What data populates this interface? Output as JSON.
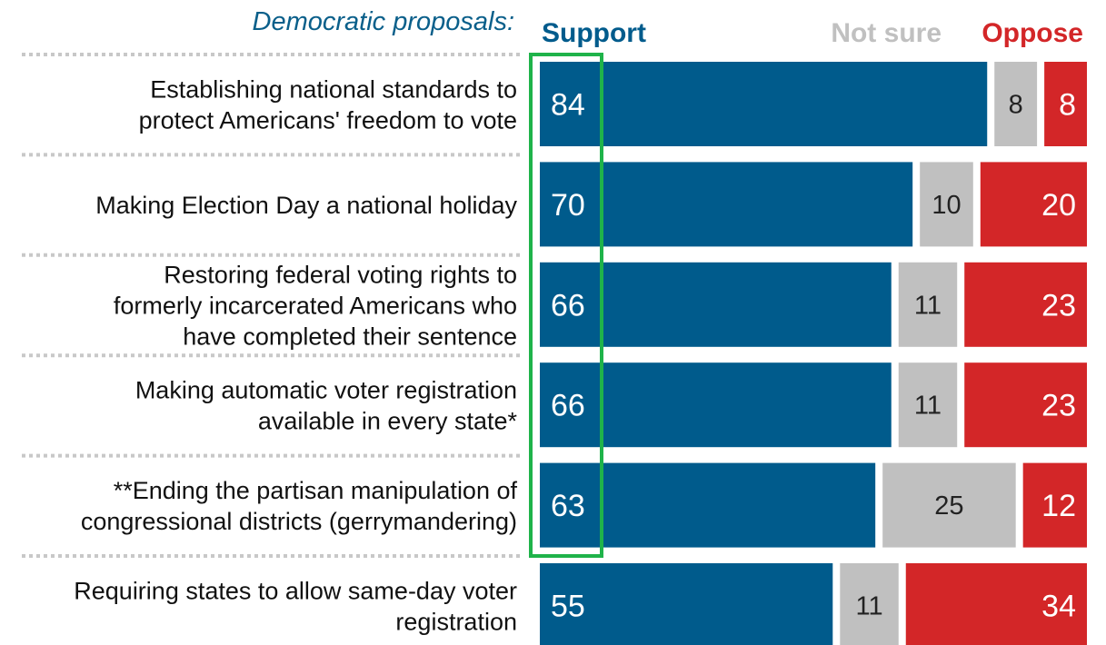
{
  "chart_data": {
    "type": "bar",
    "orientation": "horizontal",
    "stacked": true,
    "title": "Democratic proposals:",
    "categories": [
      "Establishing national standards to protect Americans' freedom to vote",
      "Making Election Day a national holiday",
      "Restoring federal voting rights to formerly incarcerated Americans who have completed their sentence",
      "Making automatic voter registration available in every state*",
      "**Ending the partisan manipulation of congressional districts (gerrymandering)",
      "Requiring states to allow same-day voter registration"
    ],
    "category_lines": [
      [
        "Establishing national standards to",
        "protect Americans' freedom to vote"
      ],
      [
        "Making Election Day a national holiday"
      ],
      [
        "Restoring federal voting rights to",
        "formerly incarcerated Americans who",
        "have completed their sentence"
      ],
      [
        "Making automatic voter registration",
        "available in every state*"
      ],
      [
        "**Ending the partisan manipulation of",
        "congressional districts (gerrymandering)"
      ],
      [
        "Requiring states to allow same-day voter",
        "registration"
      ]
    ],
    "series": [
      {
        "name": "Support",
        "color": "#005b8c",
        "values": [
          84,
          70,
          66,
          66,
          63,
          55
        ]
      },
      {
        "name": "Not sure",
        "color": "#c0c0c0",
        "values": [
          8,
          10,
          11,
          11,
          25,
          11
        ]
      },
      {
        "name": "Oppose",
        "color": "#d32628",
        "values": [
          8,
          20,
          23,
          23,
          12,
          34
        ]
      }
    ],
    "legend_position": "top",
    "highlight": {
      "series": "Support",
      "color": "#1fb34a",
      "rows": [
        0,
        1,
        2,
        3,
        4
      ]
    },
    "title_color": "#0a5f8a"
  }
}
